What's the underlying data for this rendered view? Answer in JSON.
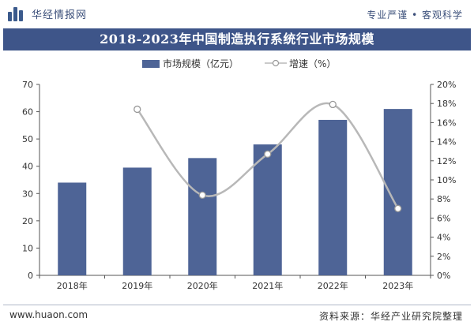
{
  "header": {
    "logo_text": "华经情报网",
    "slogan": "专业严谨 • 客观科学"
  },
  "footer": {
    "website": "www.huaon.com",
    "source": "资料来源：华经产业研究院整理"
  },
  "colors": {
    "bar": "#4e6496",
    "line": "#b8b8b8",
    "title_bg": "#3e5589"
  },
  "chart_data": {
    "type": "bar",
    "title": "2018-2023年中国制造执行系统行业市场规模",
    "categories": [
      "2018年",
      "2019年",
      "2020年",
      "2021年",
      "2022年",
      "2023年"
    ],
    "series": [
      {
        "name": "市场规模（亿元）",
        "type": "bar",
        "axis": "left",
        "values": [
          34,
          39.5,
          43,
          48,
          57,
          61
        ]
      },
      {
        "name": "增速（%）",
        "type": "line",
        "axis": "right",
        "values": [
          null,
          17.4,
          8.4,
          12.7,
          17.9,
          7.0
        ]
      }
    ],
    "y_left": {
      "ticks": [
        "0",
        "10",
        "20",
        "30",
        "40",
        "50",
        "60",
        "70"
      ],
      "ylim": [
        0,
        70
      ]
    },
    "y_right": {
      "ticks": [
        "0%",
        "2%",
        "4%",
        "6%",
        "8%",
        "10%",
        "12%",
        "14%",
        "16%",
        "18%",
        "20%"
      ],
      "ylim": [
        0,
        20
      ]
    },
    "legend_position": "top-center"
  }
}
